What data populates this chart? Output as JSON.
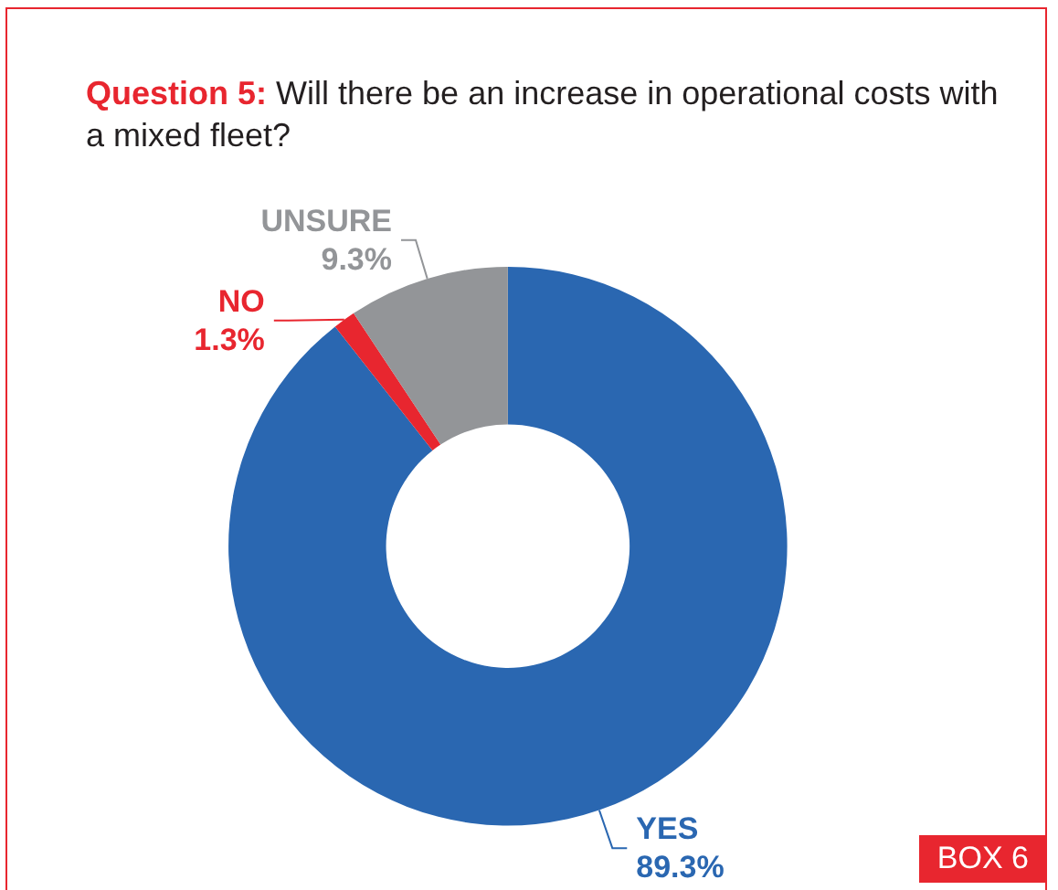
{
  "chart_data": {
    "type": "donut",
    "title": "Question 5:",
    "subtitle": "Will there be an increase in operational costs with a mixed fleet?",
    "categories": [
      "YES",
      "NO",
      "UNSURE"
    ],
    "values": [
      89.3,
      1.3,
      9.3
    ],
    "colors": [
      "#2a67b1",
      "#e8262f",
      "#939598"
    ],
    "value_labels": [
      "89.3%",
      "1.3%",
      "9.3%"
    ],
    "annotations": [
      "BOX 6"
    ],
    "legend": false
  }
}
